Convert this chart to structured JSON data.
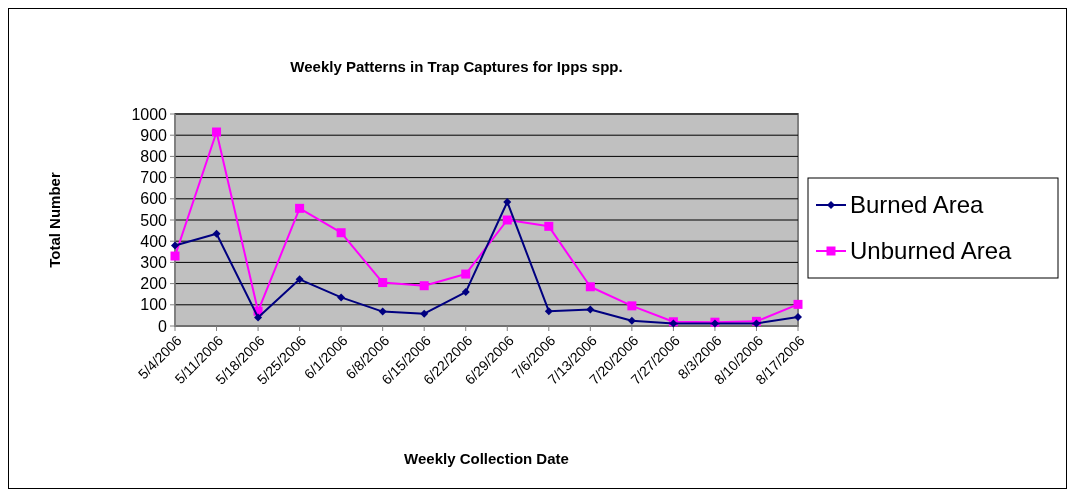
{
  "chart_data": {
    "type": "line",
    "title": "Weekly Patterns in Trap Captures for Ipps spp.",
    "xlabel": "Weekly Collection Date",
    "ylabel": "Total Number",
    "categories": [
      "5/4/2006",
      "5/11/2006",
      "5/18/2006",
      "5/25/2006",
      "6/1/2006",
      "6/8/2006",
      "6/15/2006",
      "6/22/2006",
      "6/29/2006",
      "7/6/2006",
      "7/13/2006",
      "7/20/2006",
      "7/27/2006",
      "8/3/2006",
      "8/10/2006",
      "8/17/2006"
    ],
    "series": [
      {
        "name": "Burned Area",
        "color": "#000080",
        "marker": "diamond",
        "values": [
          380,
          435,
          40,
          220,
          135,
          68,
          58,
          160,
          585,
          70,
          78,
          25,
          12,
          12,
          12,
          42
        ]
      },
      {
        "name": "Unburned Area",
        "color": "#ff00ff",
        "marker": "square",
        "values": [
          330,
          915,
          70,
          555,
          440,
          205,
          190,
          245,
          500,
          470,
          185,
          95,
          20,
          18,
          22,
          102
        ]
      }
    ],
    "ylim": [
      0,
      1000
    ],
    "yticks": [
      0,
      100,
      200,
      300,
      400,
      500,
      600,
      700,
      800,
      900,
      1000
    ],
    "grid": "y",
    "legend": "right",
    "line_style": "solid"
  }
}
